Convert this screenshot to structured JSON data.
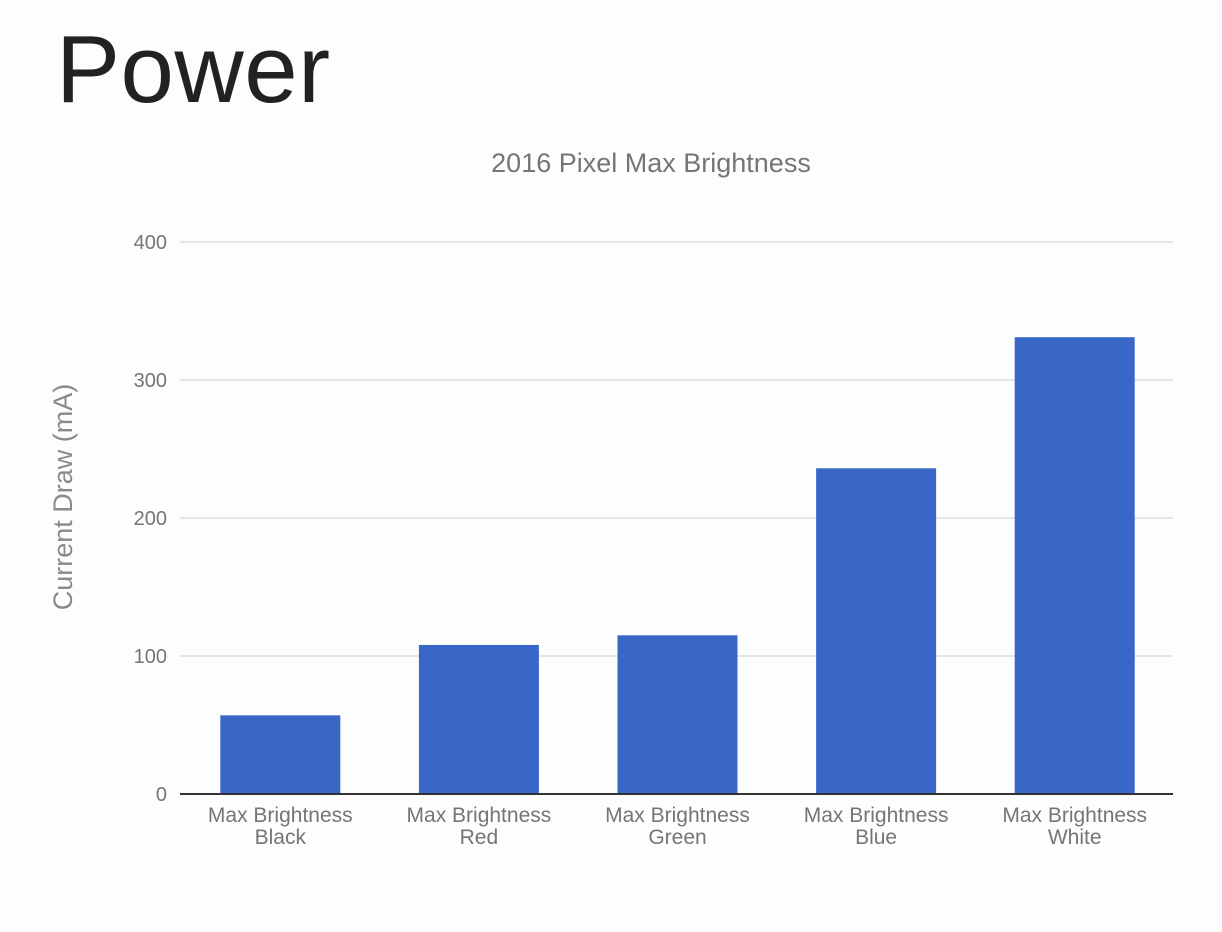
{
  "slide": {
    "title": "Power"
  },
  "colors": {
    "bar": "#3867c8",
    "grid": "#dddddd",
    "axis": "#333333",
    "text": "#757575"
  },
  "chart_data": {
    "type": "bar",
    "title": "2016 Pixel Max Brightness",
    "xlabel": "",
    "ylabel": "Current Draw (mA)",
    "ylim": [
      0,
      400
    ],
    "yticks": [
      0,
      100,
      200,
      300,
      400
    ],
    "grid": true,
    "categories": [
      [
        "Max Brightness",
        "Black"
      ],
      [
        "Max Brightness",
        "Red"
      ],
      [
        "Max Brightness",
        "Green"
      ],
      [
        "Max Brightness",
        "Blue"
      ],
      [
        "Max Brightness",
        "White"
      ]
    ],
    "values": [
      57,
      108,
      115,
      236,
      331
    ]
  }
}
